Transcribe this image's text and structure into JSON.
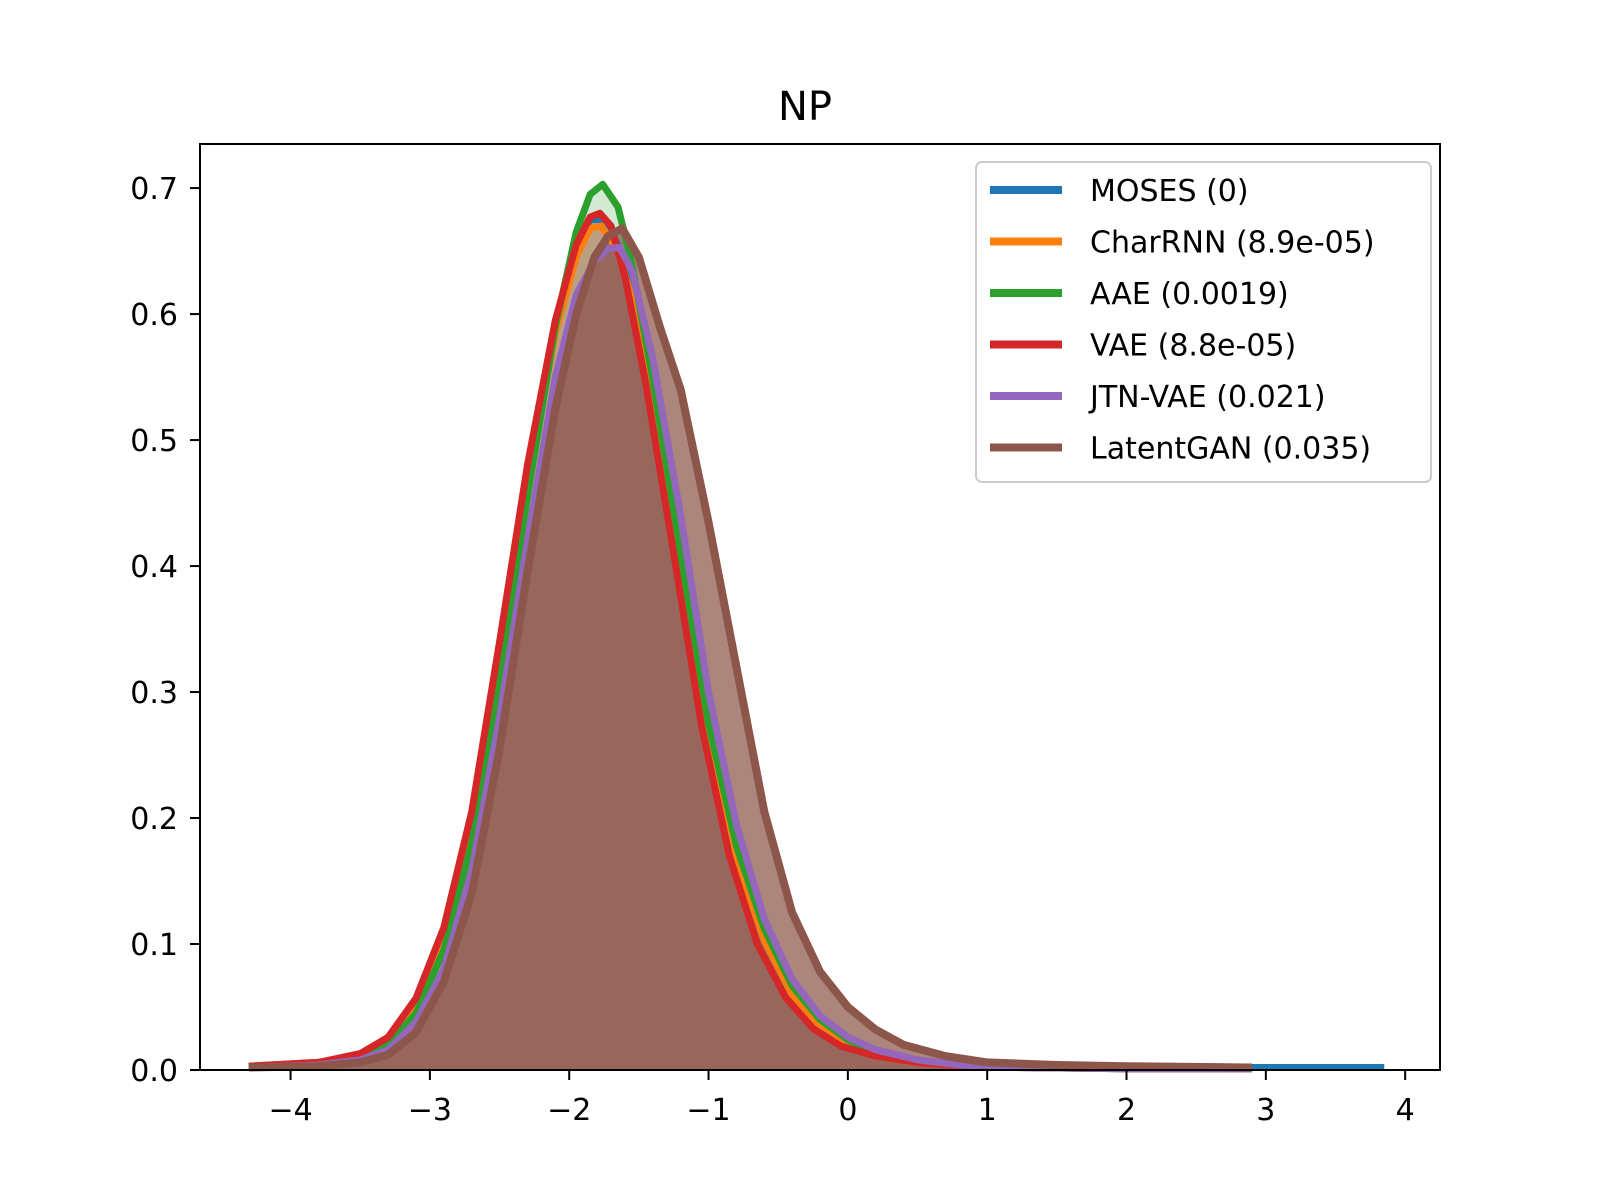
{
  "chart_data": {
    "type": "area",
    "title": "NP",
    "xlabel": "",
    "ylabel": "",
    "xlim": [
      -4.65,
      4.25
    ],
    "ylim": [
      0,
      0.735
    ],
    "xticks": [
      -4,
      -3,
      -2,
      -1,
      0,
      1,
      2,
      3,
      4
    ],
    "xtick_labels": [
      "−4",
      "−3",
      "−2",
      "−1",
      "0",
      "1",
      "2",
      "3",
      "4"
    ],
    "yticks": [
      0.0,
      0.1,
      0.2,
      0.3,
      0.4,
      0.5,
      0.6,
      0.7
    ],
    "ytick_labels": [
      "0.0",
      "0.1",
      "0.2",
      "0.3",
      "0.4",
      "0.5",
      "0.6",
      "0.7"
    ],
    "grid": false,
    "legend_position": "top-right",
    "series": [
      {
        "name": "MOSES (0)",
        "color": "#1f77b4",
        "x": [
          -4.3,
          -3.8,
          -3.5,
          -3.3,
          -3.1,
          -2.9,
          -2.7,
          -2.5,
          -2.3,
          -2.1,
          -1.95,
          -1.85,
          -1.75,
          -1.65,
          -1.55,
          -1.4,
          -1.2,
          -1.0,
          -0.8,
          -0.6,
          -0.4,
          -0.2,
          0.0,
          0.2,
          0.5,
          0.8,
          1.2,
          2.0,
          3.0,
          3.85
        ],
        "y": [
          0.003,
          0.006,
          0.012,
          0.024,
          0.055,
          0.11,
          0.2,
          0.33,
          0.47,
          0.59,
          0.65,
          0.675,
          0.675,
          0.655,
          0.615,
          0.53,
          0.4,
          0.265,
          0.17,
          0.105,
          0.062,
          0.035,
          0.02,
          0.012,
          0.007,
          0.004,
          0.003,
          0.002,
          0.002,
          0.002
        ]
      },
      {
        "name": "CharRNN (8.9e-05)",
        "color": "#ff7f0e",
        "x": [
          -4.3,
          -3.8,
          -3.5,
          -3.3,
          -3.1,
          -2.9,
          -2.7,
          -2.5,
          -2.3,
          -2.1,
          -1.95,
          -1.85,
          -1.77,
          -1.65,
          -1.55,
          -1.4,
          -1.2,
          -1.0,
          -0.8,
          -0.6,
          -0.4,
          -0.2,
          0.0,
          0.2,
          0.5,
          0.8,
          1.2,
          2.0,
          2.9
        ],
        "y": [
          0.003,
          0.006,
          0.012,
          0.024,
          0.054,
          0.108,
          0.198,
          0.325,
          0.465,
          0.585,
          0.645,
          0.668,
          0.67,
          0.65,
          0.612,
          0.525,
          0.395,
          0.262,
          0.168,
          0.103,
          0.06,
          0.034,
          0.019,
          0.011,
          0.006,
          0.003,
          0.002,
          0.001,
          0.001
        ]
      },
      {
        "name": "AAE (0.0019)",
        "color": "#2ca02c",
        "x": [
          -4.3,
          -3.8,
          -3.5,
          -3.3,
          -3.1,
          -2.9,
          -2.7,
          -2.5,
          -2.3,
          -2.1,
          -1.95,
          -1.85,
          -1.76,
          -1.65,
          -1.55,
          -1.4,
          -1.2,
          -1.0,
          -0.8,
          -0.6,
          -0.4,
          -0.2,
          0.0,
          0.2,
          0.5,
          0.8,
          1.2,
          2.0,
          2.9
        ],
        "y": [
          0.003,
          0.005,
          0.01,
          0.02,
          0.045,
          0.095,
          0.18,
          0.31,
          0.455,
          0.59,
          0.665,
          0.695,
          0.703,
          0.685,
          0.64,
          0.548,
          0.41,
          0.275,
          0.178,
          0.112,
          0.067,
          0.04,
          0.024,
          0.014,
          0.007,
          0.004,
          0.002,
          0.001,
          0.001
        ]
      },
      {
        "name": "VAE (8.8e-05)",
        "color": "#d62728",
        "x": [
          -4.3,
          -3.8,
          -3.5,
          -3.3,
          -3.1,
          -2.9,
          -2.7,
          -2.5,
          -2.3,
          -2.1,
          -1.95,
          -1.85,
          -1.78,
          -1.7,
          -1.6,
          -1.45,
          -1.25,
          -1.05,
          -0.85,
          -0.65,
          -0.45,
          -0.25,
          -0.05,
          0.2,
          0.5,
          0.8,
          1.2,
          2.0,
          2.9
        ],
        "y": [
          0.003,
          0.006,
          0.013,
          0.026,
          0.057,
          0.113,
          0.205,
          0.34,
          0.48,
          0.595,
          0.655,
          0.677,
          0.68,
          0.67,
          0.63,
          0.545,
          0.41,
          0.273,
          0.17,
          0.1,
          0.058,
          0.033,
          0.019,
          0.011,
          0.006,
          0.003,
          0.002,
          0.001,
          0.001
        ]
      },
      {
        "name": "JTN-VAE (0.021)",
        "color": "#9467bd",
        "x": [
          -4.3,
          -3.8,
          -3.5,
          -3.3,
          -3.1,
          -2.9,
          -2.7,
          -2.5,
          -2.3,
          -2.1,
          -1.95,
          -1.82,
          -1.72,
          -1.64,
          -1.55,
          -1.4,
          -1.2,
          -1.0,
          -0.8,
          -0.6,
          -0.4,
          -0.2,
          0.0,
          0.2,
          0.5,
          0.8,
          1.2,
          2.0,
          2.9
        ],
        "y": [
          0.002,
          0.004,
          0.008,
          0.016,
          0.038,
          0.08,
          0.158,
          0.28,
          0.42,
          0.55,
          0.615,
          0.642,
          0.652,
          0.653,
          0.635,
          0.565,
          0.44,
          0.3,
          0.195,
          0.12,
          0.072,
          0.043,
          0.026,
          0.016,
          0.008,
          0.004,
          0.002,
          0.001,
          0.001
        ]
      },
      {
        "name": "LatentGAN (0.035)",
        "color": "#8c564b",
        "x": [
          -4.3,
          -3.8,
          -3.5,
          -3.3,
          -3.1,
          -2.9,
          -2.7,
          -2.5,
          -2.3,
          -2.1,
          -1.95,
          -1.82,
          -1.72,
          -1.62,
          -1.5,
          -1.35,
          -1.2,
          -1.0,
          -0.8,
          -0.6,
          -0.4,
          -0.2,
          0.0,
          0.2,
          0.4,
          0.7,
          1.0,
          1.5,
          2.0,
          2.9
        ],
        "y": [
          0.002,
          0.003,
          0.006,
          0.012,
          0.03,
          0.07,
          0.14,
          0.255,
          0.395,
          0.525,
          0.6,
          0.645,
          0.662,
          0.668,
          0.645,
          0.59,
          0.54,
          0.435,
          0.32,
          0.205,
          0.125,
          0.078,
          0.05,
          0.032,
          0.02,
          0.011,
          0.006,
          0.004,
          0.003,
          0.002
        ]
      }
    ]
  }
}
